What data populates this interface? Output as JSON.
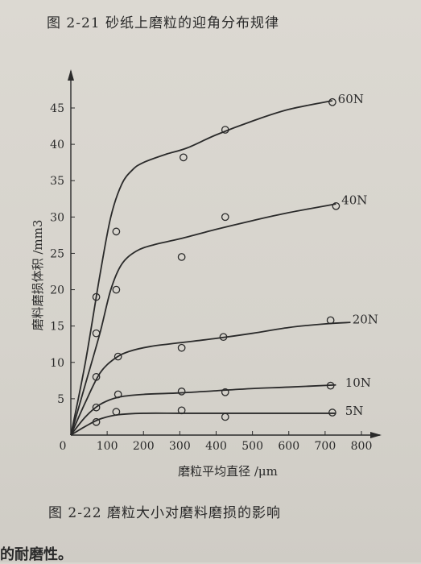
{
  "top_caption": "图 2-21   砂纸上磨粒的迎角分布规律",
  "bottom_caption": "图 2-22   磨粒大小对磨料磨损的影响",
  "page_fragment": "的耐磨性。",
  "colors": {
    "ink": "#2a2a2a",
    "paper": "#d9d6cf"
  },
  "chart_data": {
    "type": "line",
    "title": "",
    "xlabel": "磨粒平均直径 /μm",
    "ylabel": "磨料磨损体积 /mm3",
    "xlim": [
      0,
      800
    ],
    "ylim": [
      0,
      45
    ],
    "x_ticks": [
      0,
      100,
      200,
      300,
      400,
      500,
      600,
      700,
      800
    ],
    "y_ticks": [
      0,
      5,
      10,
      15,
      20,
      25,
      30,
      35,
      40,
      45
    ],
    "origin_label": "0",
    "grid": false,
    "series": [
      {
        "name": "60N",
        "curve": [
          [
            0,
            0
          ],
          [
            40,
            10
          ],
          [
            80,
            22
          ],
          [
            110,
            30
          ],
          [
            140,
            34.5
          ],
          [
            170,
            36.5
          ],
          [
            200,
            37.5
          ],
          [
            260,
            38.6
          ],
          [
            320,
            39.5
          ],
          [
            400,
            41.3
          ],
          [
            500,
            43.2
          ],
          [
            600,
            44.8
          ],
          [
            720,
            46
          ]
        ],
        "points": [
          [
            70,
            19
          ],
          [
            125,
            28
          ],
          [
            310,
            38.2
          ],
          [
            425,
            42
          ],
          [
            720,
            45.8
          ]
        ]
      },
      {
        "name": "40N",
        "curve": [
          [
            0,
            0
          ],
          [
            40,
            7
          ],
          [
            80,
            14
          ],
          [
            110,
            20
          ],
          [
            140,
            23.5
          ],
          [
            180,
            25.3
          ],
          [
            230,
            26.2
          ],
          [
            300,
            27
          ],
          [
            400,
            28.3
          ],
          [
            500,
            29.5
          ],
          [
            600,
            30.6
          ],
          [
            730,
            31.8
          ]
        ],
        "points": [
          [
            70,
            14
          ],
          [
            125,
            20
          ],
          [
            305,
            24.5
          ],
          [
            425,
            30
          ],
          [
            730,
            31.5
          ]
        ]
      },
      {
        "name": "20N",
        "curve": [
          [
            0,
            0
          ],
          [
            40,
            4.5
          ],
          [
            80,
            8.5
          ],
          [
            120,
            10.5
          ],
          [
            160,
            11.5
          ],
          [
            220,
            12.2
          ],
          [
            300,
            12.7
          ],
          [
            400,
            13.3
          ],
          [
            500,
            14
          ],
          [
            600,
            14.8
          ],
          [
            700,
            15.3
          ],
          [
            770,
            15.5
          ]
        ],
        "points": [
          [
            70,
            8
          ],
          [
            130,
            10.8
          ],
          [
            305,
            12
          ],
          [
            420,
            13.5
          ],
          [
            715,
            15.8
          ]
        ]
      },
      {
        "name": "10N",
        "curve": [
          [
            0,
            0
          ],
          [
            40,
            2.5
          ],
          [
            80,
            4.2
          ],
          [
            130,
            5.2
          ],
          [
            200,
            5.6
          ],
          [
            300,
            5.8
          ],
          [
            400,
            6.1
          ],
          [
            500,
            6.4
          ],
          [
            600,
            6.6
          ],
          [
            730,
            6.9
          ]
        ],
        "points": [
          [
            70,
            3.8
          ],
          [
            130,
            5.6
          ],
          [
            305,
            6
          ],
          [
            425,
            5.9
          ],
          [
            715,
            6.8
          ]
        ]
      },
      {
        "name": "5N",
        "curve": [
          [
            0,
            0
          ],
          [
            40,
            1.2
          ],
          [
            80,
            2.2
          ],
          [
            130,
            2.8
          ],
          [
            200,
            3
          ],
          [
            300,
            3
          ],
          [
            400,
            3
          ],
          [
            500,
            3
          ],
          [
            600,
            3
          ],
          [
            730,
            3
          ]
        ],
        "points": [
          [
            70,
            1.8
          ],
          [
            125,
            3.2
          ],
          [
            305,
            3.4
          ],
          [
            425,
            2.5
          ],
          [
            720,
            3.1
          ]
        ]
      }
    ],
    "series_label_positions": [
      {
        "name": "60N",
        "x": 735,
        "y": 46.2
      },
      {
        "name": "40N",
        "x": 745,
        "y": 32.3
      },
      {
        "name": "20N",
        "x": 775,
        "y": 15.9
      },
      {
        "name": "10N",
        "x": 755,
        "y": 7.2
      },
      {
        "name": "5N",
        "x": 755,
        "y": 3.3
      }
    ]
  }
}
